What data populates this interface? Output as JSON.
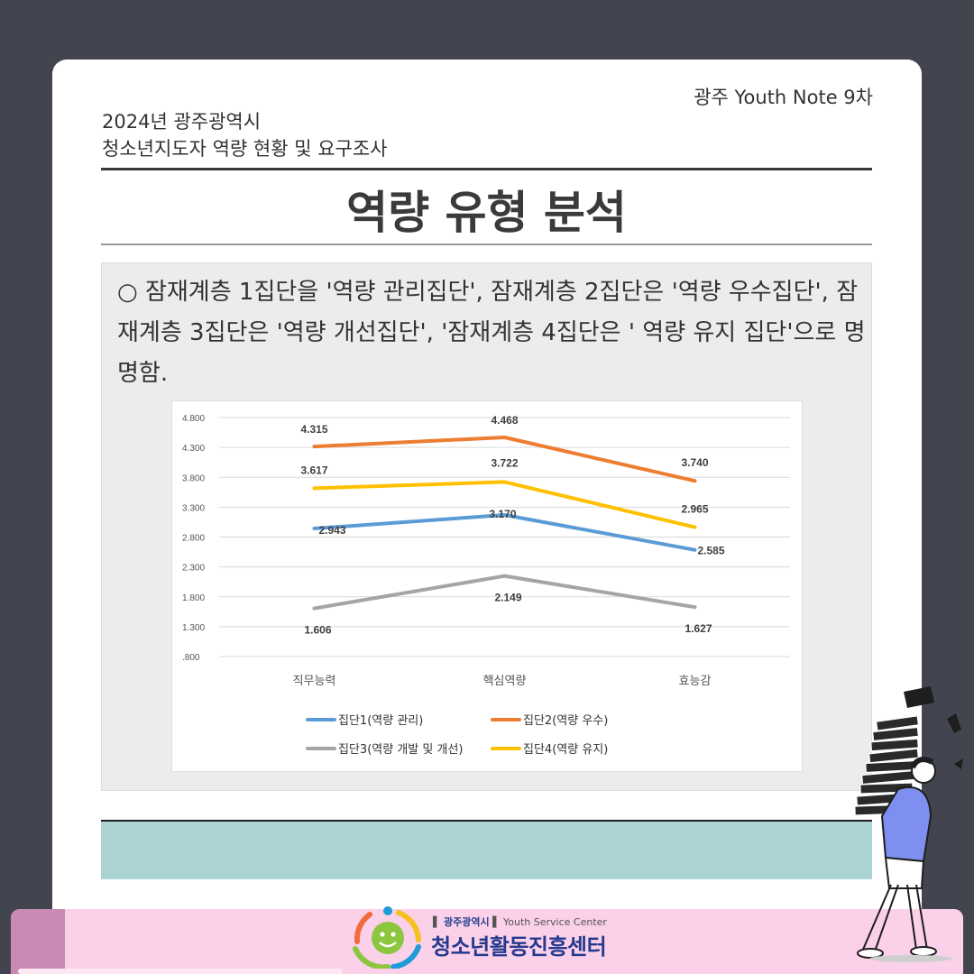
{
  "header": {
    "series_no": "광주 Youth Note 9차",
    "subtitle_line1": "2024년 광주광역시",
    "subtitle_line2": "청소년지도자 역량 현황 및 요구조사",
    "title": "역량 유형 분석"
  },
  "description": "○ 잠재계층 1집단을 '역량 관리집단', 잠재계층 2집단은 '역량 우수집단', 잠재계층 3집단은 '역량 개선집단', '잠재계층 4집단은 ' 역량 유지 집단'으로 명명함.",
  "chart_data": {
    "type": "line",
    "categories": [
      "직무능력",
      "핵심역량",
      "효능감"
    ],
    "ylim": [
      0.8,
      4.8
    ],
    "yticks": [
      ".800",
      "1.300",
      "1.800",
      "2.300",
      "2.800",
      "3.300",
      "3.800",
      "4.300",
      "4.800"
    ],
    "grid": true,
    "legend_position": "bottom",
    "series": [
      {
        "name": "집단1(역량 관리)",
        "color": "#5b9bd5",
        "values": [
          2.943,
          3.17,
          2.585
        ],
        "labels": [
          "2.943",
          "3.170",
          "2.585"
        ]
      },
      {
        "name": "집단2(역량 우수)",
        "color": "#ed7d31",
        "values": [
          4.315,
          4.468,
          3.74
        ],
        "labels": [
          "4.315",
          "4.468",
          "3.740"
        ]
      },
      {
        "name": "집단3(역량 개발 및 개선)",
        "color": "#a5a5a5",
        "values": [
          1.606,
          2.149,
          1.627
        ],
        "labels": [
          "1.606",
          "2.149",
          "1.627"
        ]
      },
      {
        "name": "집단4(역량 유지)",
        "color": "#ffc000",
        "values": [
          3.617,
          3.722,
          2.965
        ],
        "labels": [
          "3.617",
          "3.722",
          "2.965"
        ]
      }
    ]
  },
  "footer": {
    "city_label": "광주광역시",
    "center_en": "Youth Service Center",
    "org_name": "청소년활동진흥센터"
  },
  "colors": {
    "background": "#424550",
    "teal_band": "#acd3d3",
    "footer_pink": "#fbd0e9",
    "org_blue": "#253a8e"
  },
  "icons": [
    "logo-icon",
    "person-carrying-books-illustration"
  ]
}
